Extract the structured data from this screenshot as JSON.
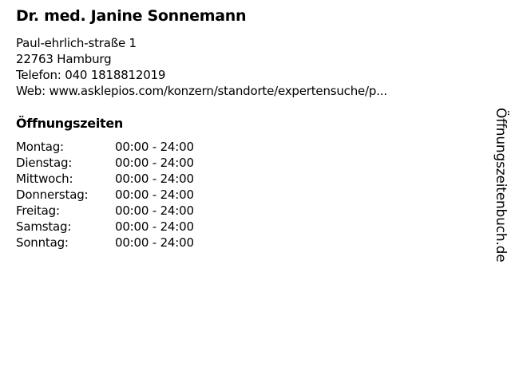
{
  "title": "Dr. med. Janine Sonnemann",
  "address": {
    "street": "Paul-ehrlich-straße 1",
    "city": "22763 Hamburg",
    "phone": "Telefon: 040 1818812019",
    "web": "Web: www.asklepios.com/konzern/standorte/expertensuche/p..."
  },
  "hours_heading": "Öffnungszeiten",
  "hours": [
    {
      "day": "Montag:",
      "time": "00:00 - 24:00"
    },
    {
      "day": "Dienstag:",
      "time": "00:00 - 24:00"
    },
    {
      "day": "Mittwoch:",
      "time": "00:00 - 24:00"
    },
    {
      "day": "Donnerstag:",
      "time": "00:00 - 24:00"
    },
    {
      "day": "Freitag:",
      "time": "00:00 - 24:00"
    },
    {
      "day": "Samstag:",
      "time": "00:00 - 24:00"
    },
    {
      "day": "Sonntag:",
      "time": "00:00 - 24:00"
    }
  ],
  "watermark": "Öffnungszeitenbuch.de"
}
